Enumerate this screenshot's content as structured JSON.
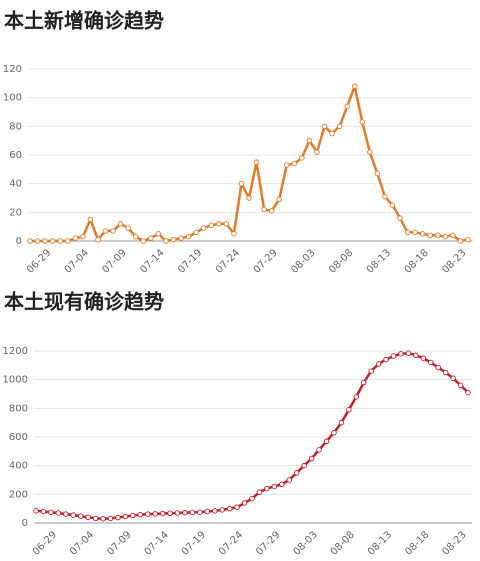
{
  "chart_data": [
    {
      "type": "line",
      "title": "本土新增确诊趋势",
      "categories": [
        null,
        null,
        "06-29",
        null,
        null,
        null,
        null,
        "07-04",
        null,
        null,
        null,
        null,
        "07-09",
        null,
        null,
        null,
        null,
        "07-14",
        null,
        null,
        null,
        null,
        "07-19",
        null,
        null,
        null,
        null,
        "07-24",
        null,
        null,
        null,
        null,
        "07-29",
        null,
        null,
        null,
        null,
        "08-03",
        null,
        null,
        null,
        null,
        "08-08",
        null,
        null,
        null,
        null,
        "08-13",
        null,
        null,
        null,
        null,
        "08-18",
        null,
        null,
        null,
        null,
        "08-23",
        null
      ],
      "values": [
        0,
        0,
        0,
        0,
        0,
        0,
        2,
        3,
        15,
        1,
        7,
        7,
        12,
        9,
        3,
        0,
        2,
        5,
        0,
        1,
        2,
        3,
        6,
        9,
        11,
        12,
        12,
        5,
        40,
        30,
        55,
        22,
        21,
        29,
        53,
        54,
        58,
        70,
        62,
        80,
        75,
        80,
        94,
        108,
        83,
        62,
        47,
        31,
        25,
        16,
        6,
        6,
        5,
        4,
        4,
        3,
        4,
        0,
        1
      ],
      "color": "#e07b2a",
      "ylim": [
        0,
        120
      ],
      "yticks": [
        0,
        20,
        40,
        60,
        80,
        100,
        120
      ],
      "grid": true
    },
    {
      "type": "line",
      "title": "本土现有确诊趋势",
      "categories": [
        null,
        null,
        "06-29",
        null,
        null,
        null,
        null,
        "07-04",
        null,
        null,
        null,
        null,
        "07-09",
        null,
        null,
        null,
        null,
        "07-14",
        null,
        null,
        null,
        null,
        "07-19",
        null,
        null,
        null,
        null,
        "07-24",
        null,
        null,
        null,
        null,
        "07-29",
        null,
        null,
        null,
        null,
        "08-03",
        null,
        null,
        null,
        null,
        "08-08",
        null,
        null,
        null,
        null,
        "08-13",
        null,
        null,
        null,
        null,
        "08-18",
        null,
        null,
        null,
        null,
        "08-23",
        null
      ],
      "values": [
        85,
        80,
        75,
        70,
        62,
        55,
        48,
        40,
        32,
        30,
        32,
        38,
        45,
        52,
        58,
        62,
        64,
        66,
        68,
        70,
        72,
        74,
        76,
        80,
        85,
        92,
        100,
        110,
        140,
        170,
        215,
        240,
        255,
        270,
        300,
        350,
        400,
        450,
        510,
        570,
        630,
        700,
        790,
        880,
        980,
        1060,
        1110,
        1140,
        1165,
        1180,
        1185,
        1170,
        1150,
        1120,
        1085,
        1050,
        1010,
        960,
        910
      ],
      "color": "#c0202a",
      "ylim": [
        0,
        1200
      ],
      "yticks": [
        0,
        200,
        400,
        600,
        800,
        1000,
        1200
      ],
      "grid": true
    }
  ]
}
